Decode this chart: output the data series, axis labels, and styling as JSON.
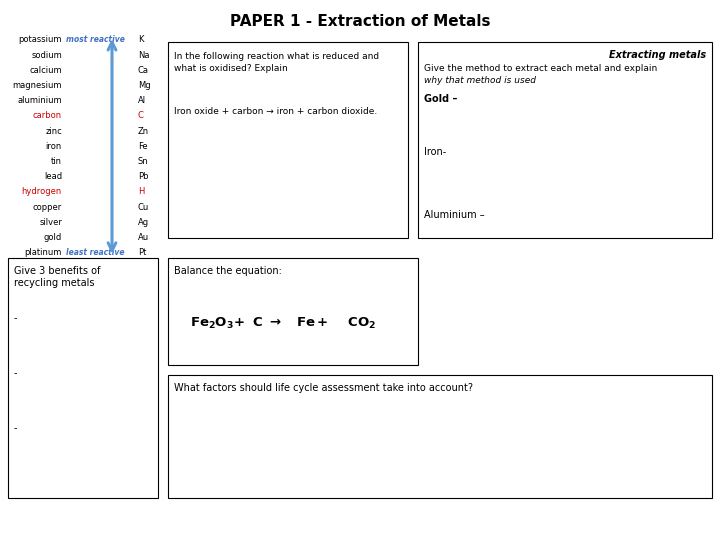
{
  "title": "PAPER 1 - Extraction of Metals",
  "bg_color": "#ffffff",
  "reactivity_series": [
    [
      "potassium",
      "most reactive",
      "K"
    ],
    [
      "sodium",
      "",
      "Na"
    ],
    [
      "calcium",
      "",
      "Ca"
    ],
    [
      "magnesium",
      "",
      "Mg"
    ],
    [
      "aluminium",
      "",
      "Al"
    ],
    [
      "carbon",
      "",
      "C"
    ],
    [
      "zinc",
      "",
      "Zn"
    ],
    [
      "iron",
      "",
      "Fe"
    ],
    [
      "tin",
      "",
      "Sn"
    ],
    [
      "lead",
      "",
      "Pb"
    ],
    [
      "hydrogen",
      "",
      "H"
    ],
    [
      "copper",
      "",
      "Cu"
    ],
    [
      "silver",
      "",
      "Ag"
    ],
    [
      "gold",
      "",
      "Au"
    ],
    [
      "platinum",
      "least reactive",
      "Pt"
    ]
  ],
  "red_elements": [
    "carbon",
    "hydrogen"
  ],
  "red_labels": [
    "most reactive",
    "least reactive"
  ],
  "box1_text_line1": "In the following reaction what is reduced and",
  "box1_text_line2": "what is oxidised? Explain",
  "box1_subtext": "Iron oxide + carbon → iron + carbon dioxide.",
  "box2_title": "Extracting metals",
  "box2_line1": "Give the method to extract each metal and explain",
  "box2_line2": "why that method is used",
  "box2_gold": "Gold –",
  "box2_iron": "Iron-",
  "box2_aluminium": "Aluminium –",
  "box3_text_line1": "Give 3 benefits of",
  "box3_text_line2": "recycling metals",
  "box4_title": "Balance the equation:",
  "box5_text": "What factors should life cycle assessment take into account?",
  "arrow_color": "#5B9BD5",
  "red_color": "#CC0000",
  "blue_label_color": "#4472C4"
}
